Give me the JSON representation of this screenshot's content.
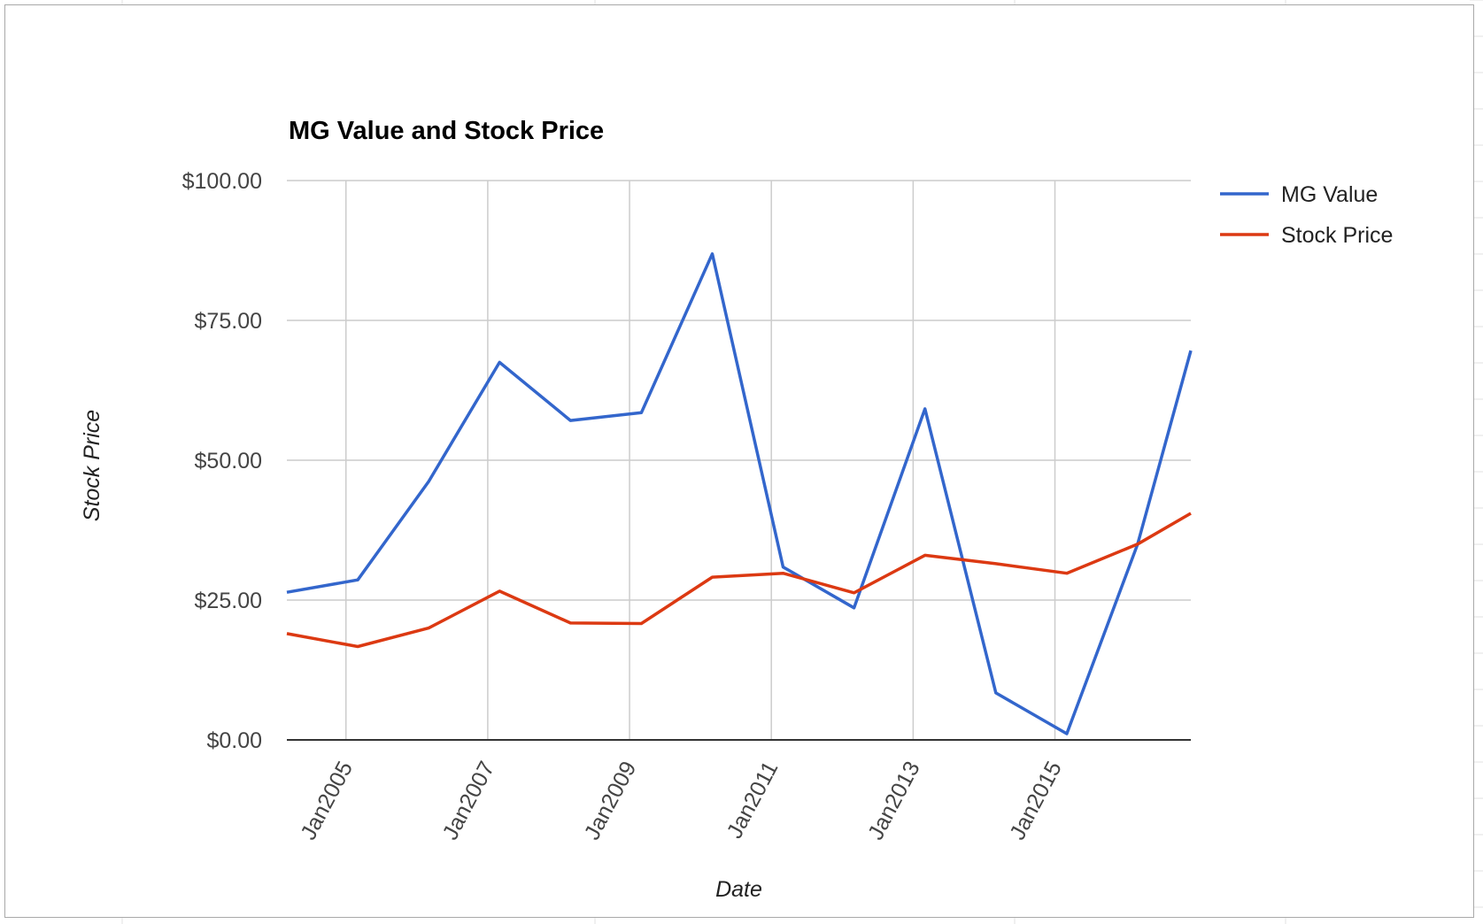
{
  "chart_data": {
    "type": "line",
    "title": "MG Value and Stock Price",
    "xlabel": "Date",
    "ylabel": "Stock Price",
    "x_tick_labels": [
      "Jan2005",
      "Jan2007",
      "Jan2009",
      "Jan2011",
      "Jan2013",
      "Jan2015"
    ],
    "y_tick_labels": [
      "$0.00",
      "$25.00",
      "$50.00",
      "$75.00",
      "$100.00"
    ],
    "ylim": [
      0,
      100
    ],
    "xlim": [
      "2004-03",
      "2016-12"
    ],
    "x": [
      "2004-03",
      "2005-03",
      "2006-03",
      "2007-03",
      "2008-03",
      "2009-03",
      "2010-03",
      "2011-03",
      "2012-03",
      "2013-03",
      "2014-03",
      "2015-03",
      "2016-03",
      "2016-12"
    ],
    "grid": true,
    "legend_position": "right",
    "series": [
      {
        "name": "MG Value",
        "color": "#3366cc",
        "values": [
          26.4,
          28.6,
          46.2,
          67.5,
          57.1,
          58.5,
          86.9,
          30.9,
          23.6,
          59.2,
          8.4,
          1.1,
          35.0,
          69.6
        ]
      },
      {
        "name": "Stock Price",
        "color": "#dc3912",
        "values": [
          19.0,
          16.7,
          20.0,
          26.6,
          20.9,
          20.8,
          29.1,
          29.8,
          26.3,
          33.0,
          31.5,
          29.8,
          35.0,
          40.5
        ]
      }
    ]
  }
}
